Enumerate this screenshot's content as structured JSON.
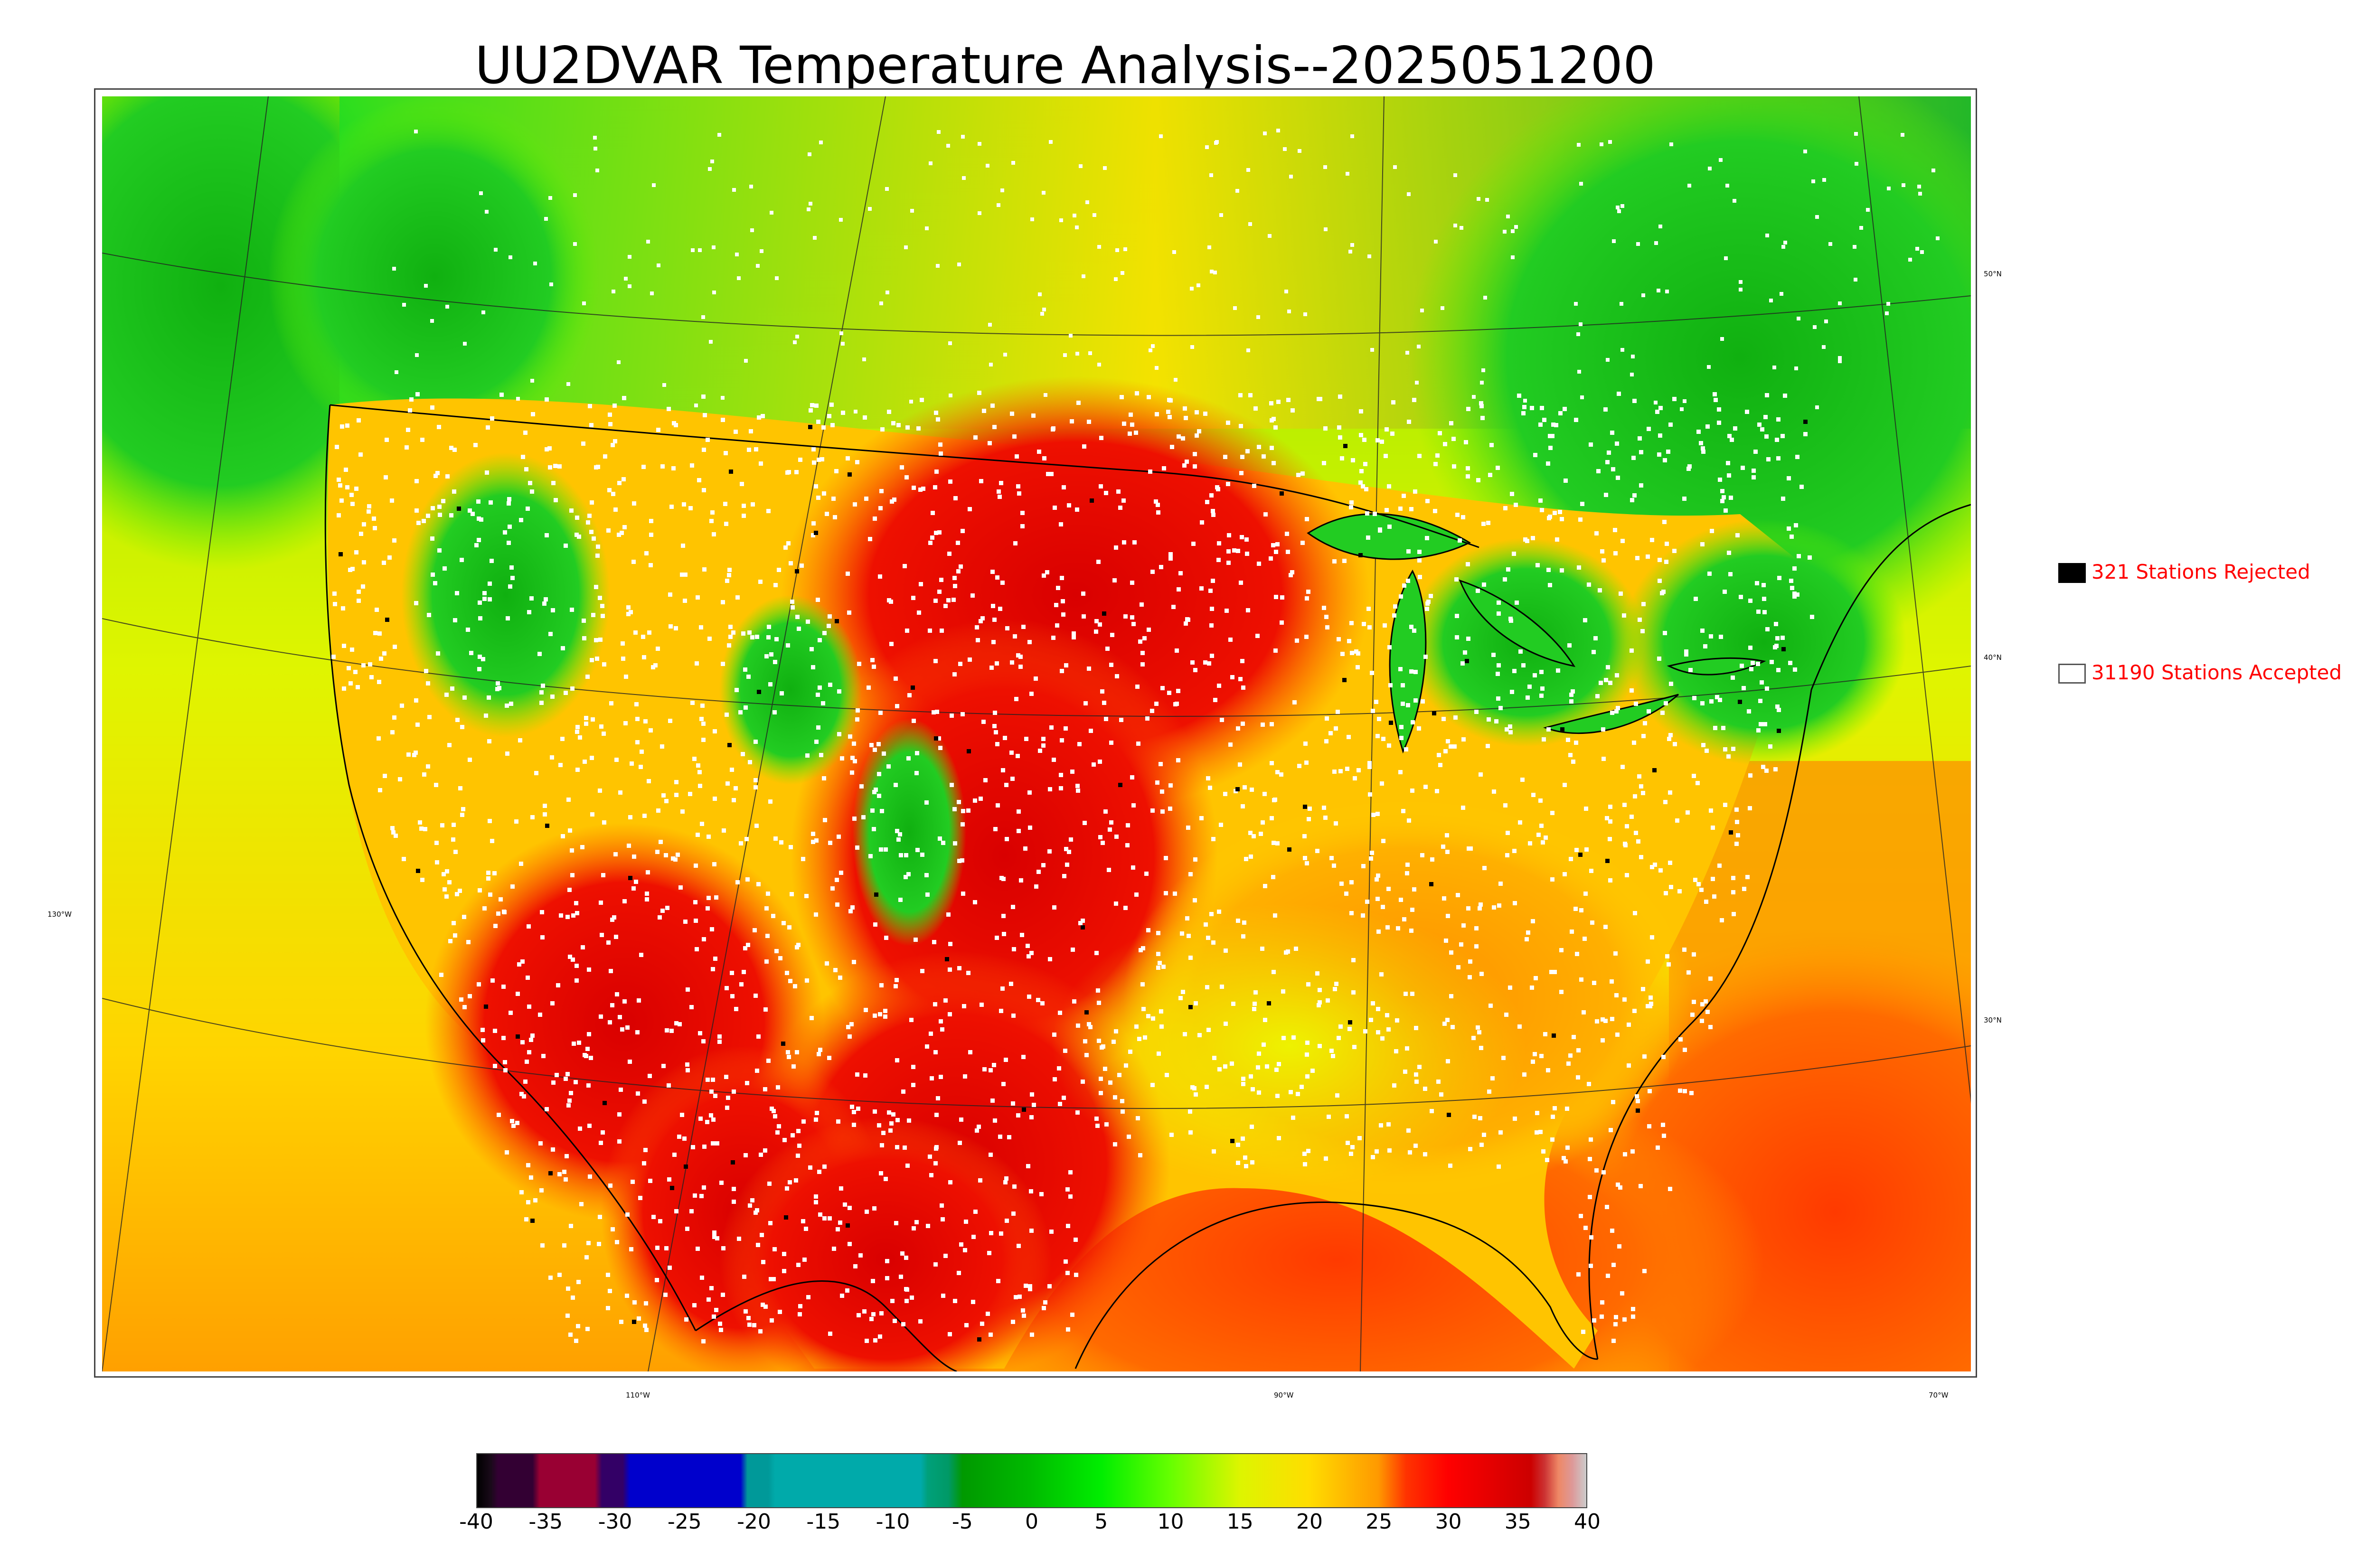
{
  "title": "UU2DVAR Temperature Analysis--2025051200",
  "map": {
    "lat_labels": [
      "50°N",
      "40°N",
      "30°N"
    ],
    "lon_labels": [
      "130°W",
      "110°W",
      "90°W",
      "70°W"
    ],
    "colors": {
      "cold_green": "#1fbf1f",
      "mid_yellow": "#e6f500",
      "warm_orange": "#ffb000",
      "hot_red": "#e60000",
      "station_accepted": "#ffffff",
      "station_rejected": "#000000"
    }
  },
  "legend": {
    "rejected": {
      "label": "321 Stations Rejected",
      "swatch": "#000000"
    },
    "accepted": {
      "label": "31190 Stations Accepted",
      "swatch": "#ffffff"
    }
  },
  "colorbar": {
    "ticks": [
      "-40",
      "-35",
      "-30",
      "-25",
      "-20",
      "-15",
      "-10",
      "-5",
      "0",
      "5",
      "10",
      "15",
      "20",
      "25",
      "30",
      "35",
      "40"
    ],
    "range": [
      -40,
      40
    ],
    "stops": [
      {
        "v": -40,
        "c": "#000000"
      },
      {
        "v": -39,
        "c": "#1a0a1a"
      },
      {
        "v": -38.5,
        "c": "#330033"
      },
      {
        "v": -36,
        "c": "#330033"
      },
      {
        "v": -35.5,
        "c": "#990033"
      },
      {
        "v": -31.5,
        "c": "#990033"
      },
      {
        "v": -31,
        "c": "#330066"
      },
      {
        "v": -29.5,
        "c": "#330066"
      },
      {
        "v": -29,
        "c": "#0000cc"
      },
      {
        "v": -21,
        "c": "#0000cc"
      },
      {
        "v": -20.5,
        "c": "#009999"
      },
      {
        "v": -19,
        "c": "#009999"
      },
      {
        "v": -18.5,
        "c": "#00aaaa"
      },
      {
        "v": -8,
        "c": "#00aaaa"
      },
      {
        "v": -7.5,
        "c": "#00a07a"
      },
      {
        "v": -6,
        "c": "#009966"
      },
      {
        "v": -5,
        "c": "#009900"
      },
      {
        "v": 0,
        "c": "#00bb00"
      },
      {
        "v": 5,
        "c": "#00ee00"
      },
      {
        "v": 10,
        "c": "#66ff00"
      },
      {
        "v": 15,
        "c": "#ddf500"
      },
      {
        "v": 20,
        "c": "#ffdd00"
      },
      {
        "v": 25,
        "c": "#ff9900"
      },
      {
        "v": 27,
        "c": "#ff3300"
      },
      {
        "v": 30,
        "c": "#ff0000"
      },
      {
        "v": 36,
        "c": "#cc0000"
      },
      {
        "v": 37,
        "c": "#cc3333"
      },
      {
        "v": 38,
        "c": "#ee8866"
      },
      {
        "v": 39,
        "c": "#dd9999"
      },
      {
        "v": 40,
        "c": "#cccccc"
      }
    ]
  }
}
